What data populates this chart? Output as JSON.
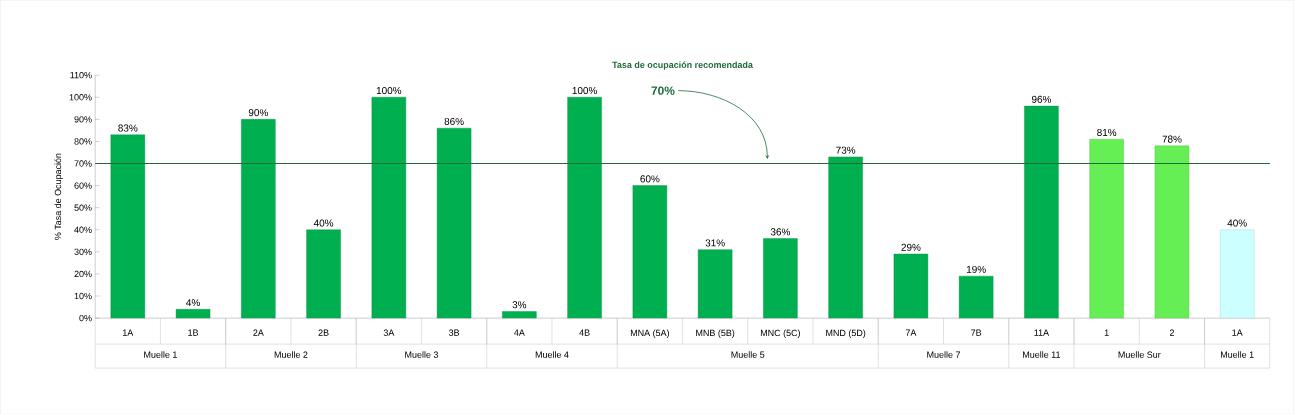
{
  "chart_data": {
    "type": "bar",
    "ylabel": "% Tasa de Ocupación",
    "categories": [
      "1A",
      "1B",
      "2A",
      "2B",
      "3A",
      "3B",
      "4A",
      "4B",
      "MNA (5A)",
      "MNB (5B)",
      "MNC (5C)",
      "MND (5D)",
      "7A",
      "7B",
      "11A",
      "1",
      "2",
      "1A"
    ],
    "values": [
      83,
      4,
      90,
      40,
      100,
      86,
      3,
      100,
      60,
      31,
      36,
      73,
      29,
      19,
      96,
      81,
      78,
      40
    ],
    "value_labels": [
      "83%",
      "4%",
      "90%",
      "40%",
      "100%",
      "86%",
      "3%",
      "100%",
      "60%",
      "31%",
      "36%",
      "73%",
      "29%",
      "19%",
      "96%",
      "81%",
      "78%",
      "40%"
    ],
    "colors": [
      "#00b050",
      "#00b050",
      "#00b050",
      "#00b050",
      "#00b050",
      "#00b050",
      "#00b050",
      "#00b050",
      "#00b050",
      "#00b050",
      "#00b050",
      "#00b050",
      "#00b050",
      "#00b050",
      "#00b050",
      "#66ee55",
      "#66ee55",
      "#ccffff"
    ],
    "ylim": [
      0,
      110
    ],
    "yticks": [
      {
        "value": 0,
        "label": "0%"
      },
      {
        "value": 10,
        "label": "10%"
      },
      {
        "value": 20,
        "label": "20%"
      },
      {
        "value": 30,
        "label": "30%"
      },
      {
        "value": 40,
        "label": "40%"
      },
      {
        "value": 50,
        "label": "50%"
      },
      {
        "value": 60,
        "label": "60%"
      },
      {
        "value": 70,
        "label": "70%"
      },
      {
        "value": 80,
        "label": "80%"
      },
      {
        "value": 90,
        "label": "90%"
      },
      {
        "value": 100,
        "label": "100%"
      },
      {
        "value": 110,
        "label": "110%"
      }
    ],
    "ref_lines": [
      {
        "axis": "y",
        "value": 70,
        "label": "Tasa de ocupación recomendada",
        "color": "#1e6b3a"
      }
    ],
    "annotations": [
      "70%",
      "Muelle 1",
      "Muelle 2",
      "Muelle 3",
      "Muelle 4",
      "Muelle 5",
      "Muelle 7",
      "Muelle 11",
      "Muelle Sur",
      "Muelle 1"
    ],
    "grid": false
  }
}
